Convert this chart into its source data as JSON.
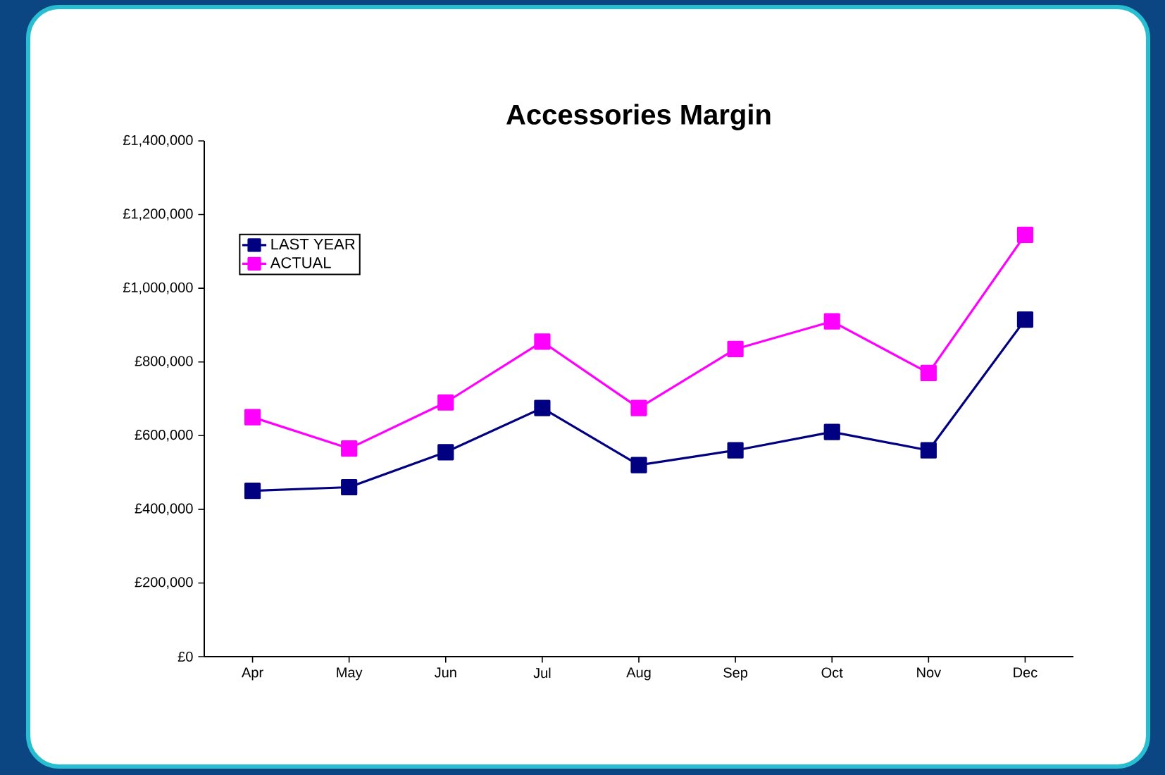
{
  "chart_data": {
    "type": "line",
    "title": "Accessories Margin",
    "categories": [
      "Apr",
      "May",
      "Jun",
      "Jul",
      "Aug",
      "Sep",
      "Oct",
      "Nov",
      "Dec"
    ],
    "series": [
      {
        "name": "LAST YEAR",
        "color": "#000080",
        "values": [
          450000,
          460000,
          555000,
          675000,
          520000,
          560000,
          610000,
          560000,
          915000
        ]
      },
      {
        "name": "ACTUAL",
        "color": "#ff00ff",
        "values": [
          650000,
          565000,
          690000,
          855000,
          675000,
          835000,
          910000,
          770000,
          1145000
        ]
      }
    ],
    "ylim": [
      0,
      1400000
    ],
    "yticks": [
      {
        "value": 0,
        "label": "£0"
      },
      {
        "value": 200000,
        "label": "£200,000"
      },
      {
        "value": 400000,
        "label": "£400,000"
      },
      {
        "value": 600000,
        "label": "£600,000"
      },
      {
        "value": 800000,
        "label": "£800,000"
      },
      {
        "value": 1000000,
        "label": "£1,000,000"
      },
      {
        "value": 1200000,
        "label": "£1,200,000"
      },
      {
        "value": 1400000,
        "label": "£1,400,000"
      }
    ],
    "grid": false,
    "legend": "top left",
    "marker": "square",
    "line_style": "solid"
  }
}
